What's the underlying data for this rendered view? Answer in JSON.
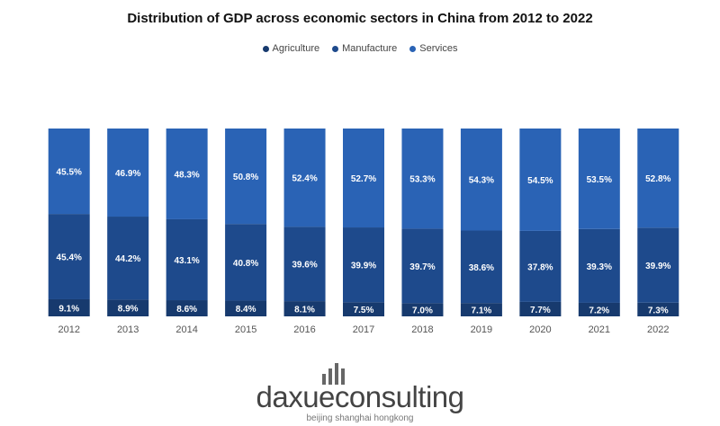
{
  "chart_data": {
    "type": "bar",
    "stacked": true,
    "normalized": true,
    "title": "Distribution of GDP across economic sectors in China from 2012 to 2022",
    "categories": [
      "2012",
      "2013",
      "2014",
      "2015",
      "2016",
      "2017",
      "2018",
      "2019",
      "2020",
      "2021",
      "2022"
    ],
    "series": [
      {
        "name": "Agriculture",
        "color": "#173a6e",
        "values": [
          9.1,
          8.9,
          8.6,
          8.4,
          8.1,
          7.5,
          7.0,
          7.1,
          7.7,
          7.2,
          7.3
        ]
      },
      {
        "name": "Manufacture",
        "color": "#1e4a8c",
        "values": [
          45.4,
          44.2,
          43.1,
          40.8,
          39.6,
          39.9,
          39.7,
          38.6,
          37.8,
          39.3,
          39.9
        ]
      },
      {
        "name": "Services",
        "color": "#2a63b5",
        "values": [
          45.5,
          46.9,
          48.3,
          50.8,
          52.4,
          52.7,
          53.3,
          54.3,
          54.5,
          53.5,
          52.8
        ]
      }
    ],
    "value_suffix": "%",
    "legend_position": "top-center",
    "grid": false
  },
  "logo": {
    "name": "daxueconsulting",
    "tagline": "beijing shanghai hongkong"
  }
}
